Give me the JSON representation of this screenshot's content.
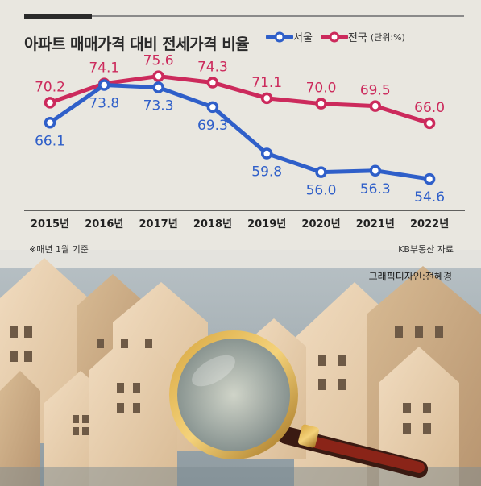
{
  "chart_data": {
    "type": "line",
    "title": "아파트 매매가격 대비 전세가격 비율",
    "unit": "(단위:%)",
    "categories": [
      "2015년",
      "2016년",
      "2017년",
      "2018년",
      "2019년",
      "2020년",
      "2021년",
      "2022년"
    ],
    "series": [
      {
        "name": "서울",
        "color": "#2f5fc9",
        "values": [
          66.1,
          73.8,
          73.3,
          69.3,
          59.8,
          56.0,
          56.3,
          54.6
        ]
      },
      {
        "name": "전국",
        "color": "#cc2a5c",
        "values": [
          70.2,
          74.1,
          75.6,
          74.3,
          71.1,
          70.0,
          69.5,
          66.0
        ]
      }
    ],
    "value_labels": {
      "서울": [
        "66.1",
        "73.8",
        "73.3",
        "69.3",
        "59.8",
        "56.0",
        "56.3",
        "54.6"
      ],
      "전국": [
        "70.2",
        "74.1",
        "75.6",
        "74.3",
        "71.1",
        "70.0",
        "69.5",
        "66.0"
      ]
    },
    "ylim": [
      50,
      78
    ],
    "grid": false,
    "legend_position": "top-right"
  },
  "notes": {
    "basis": "※매년 1월 기준",
    "source": "KB부동산 자료",
    "designer": "그래픽디자인:전혜경"
  },
  "photo": {
    "description": "wooden house models with a magnifying glass"
  }
}
